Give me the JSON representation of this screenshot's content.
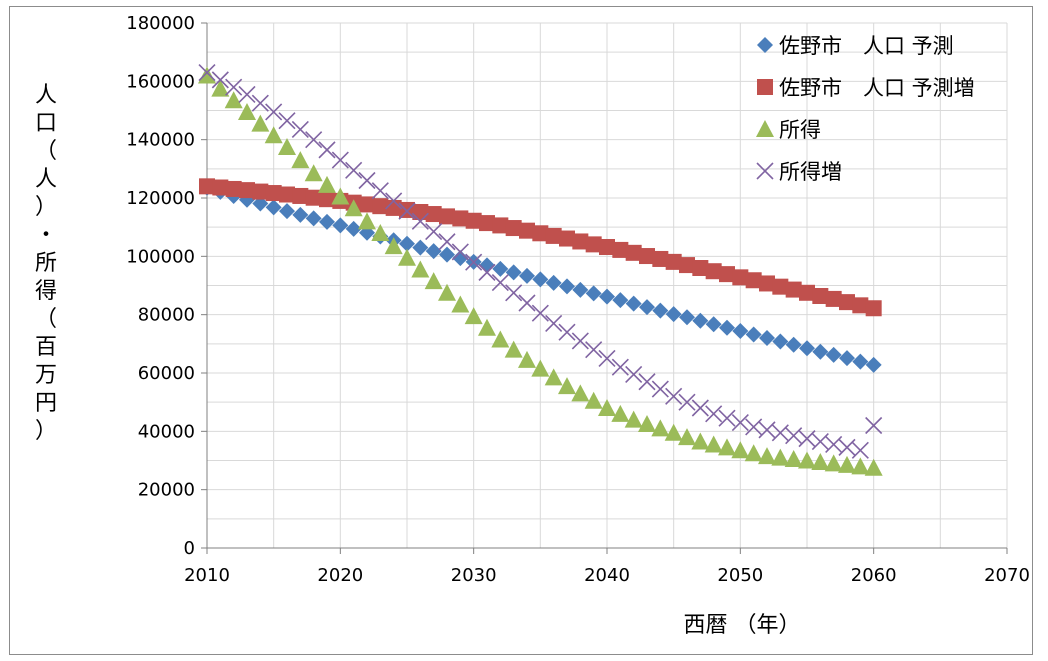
{
  "chart_data": {
    "type": "scatter",
    "xlabel": "西暦 （年）",
    "ylabel_lines": [
      "人口（人）・",
      "所得（百万円）"
    ],
    "xlim": [
      2010,
      2070
    ],
    "ylim": [
      0,
      180000
    ],
    "x_ticks": [
      2010,
      2020,
      2030,
      2040,
      2050,
      2060,
      2070
    ],
    "y_ticks": [
      0,
      20000,
      40000,
      60000,
      80000,
      100000,
      120000,
      140000,
      160000,
      180000
    ],
    "grid": true,
    "legend_position": "top-right",
    "x": [
      2010,
      2011,
      2012,
      2013,
      2014,
      2015,
      2016,
      2017,
      2018,
      2019,
      2020,
      2021,
      2022,
      2023,
      2024,
      2025,
      2026,
      2027,
      2028,
      2029,
      2030,
      2031,
      2032,
      2033,
      2034,
      2035,
      2036,
      2037,
      2038,
      2039,
      2040,
      2041,
      2042,
      2043,
      2044,
      2045,
      2046,
      2047,
      2048,
      2049,
      2050,
      2051,
      2052,
      2053,
      2054,
      2055,
      2056,
      2057,
      2058,
      2059,
      2060
    ],
    "series": [
      {
        "name": "佐野市　人口 予測",
        "marker": "diamond",
        "color": "#4a7ebb",
        "values": [
          123500,
          122100,
          120700,
          119400,
          118100,
          116800,
          115500,
          114200,
          113000,
          111800,
          110600,
          109400,
          108100,
          106800,
          105500,
          104300,
          103000,
          101800,
          100600,
          99400,
          98100,
          96900,
          95700,
          94500,
          93300,
          92100,
          90900,
          89700,
          88500,
          87300,
          86200,
          85000,
          83800,
          82600,
          81400,
          80200,
          79100,
          77900,
          76700,
          75500,
          74400,
          73200,
          72000,
          70800,
          69700,
          68500,
          67300,
          66200,
          65100,
          63900,
          62800
        ]
      },
      {
        "name": "佐野市　人口 予測増",
        "marker": "square",
        "color": "#c0504d",
        "values": [
          124000,
          123600,
          123100,
          122700,
          122200,
          121700,
          121200,
          120700,
          120100,
          119600,
          119000,
          118400,
          117800,
          117200,
          116600,
          115900,
          115200,
          114500,
          113700,
          113000,
          112200,
          111400,
          110600,
          109700,
          108800,
          107900,
          107000,
          106100,
          105100,
          104100,
          103200,
          102200,
          101200,
          100100,
          99100,
          98100,
          97000,
          96000,
          94900,
          93900,
          92800,
          91800,
          90700,
          89600,
          88600,
          87500,
          86400,
          85400,
          84300,
          83200,
          82200
        ]
      },
      {
        "name": "所得",
        "marker": "triangle",
        "color": "#9bbb59",
        "values": [
          162000,
          157500,
          153500,
          149500,
          145500,
          141500,
          137500,
          133000,
          128500,
          124500,
          120500,
          116500,
          112000,
          108000,
          103500,
          99500,
          95500,
          91500,
          87500,
          83500,
          79500,
          75500,
          71500,
          68000,
          64500,
          61500,
          58500,
          55500,
          53000,
          50500,
          48000,
          46000,
          44000,
          42500,
          41000,
          39500,
          38000,
          36500,
          35500,
          34500,
          33500,
          32500,
          31500,
          31000,
          30500,
          30000,
          29500,
          29000,
          28500,
          28000,
          27500
        ]
      },
      {
        "name": "所得増",
        "marker": "x",
        "color": "#8064a2",
        "values": [
          163000,
          160500,
          158000,
          155500,
          152500,
          149500,
          146500,
          143500,
          140000,
          136500,
          133000,
          129500,
          126000,
          122500,
          119000,
          115500,
          112000,
          108500,
          105000,
          101500,
          98000,
          94500,
          91000,
          87500,
          84000,
          80500,
          77000,
          74000,
          71000,
          68000,
          65000,
          62000,
          59500,
          57000,
          54500,
          52000,
          50000,
          48000,
          46000,
          44500,
          43000,
          41500,
          40500,
          39500,
          38500,
          37500,
          36500,
          35500,
          34500,
          33500,
          42000
        ]
      }
    ]
  }
}
